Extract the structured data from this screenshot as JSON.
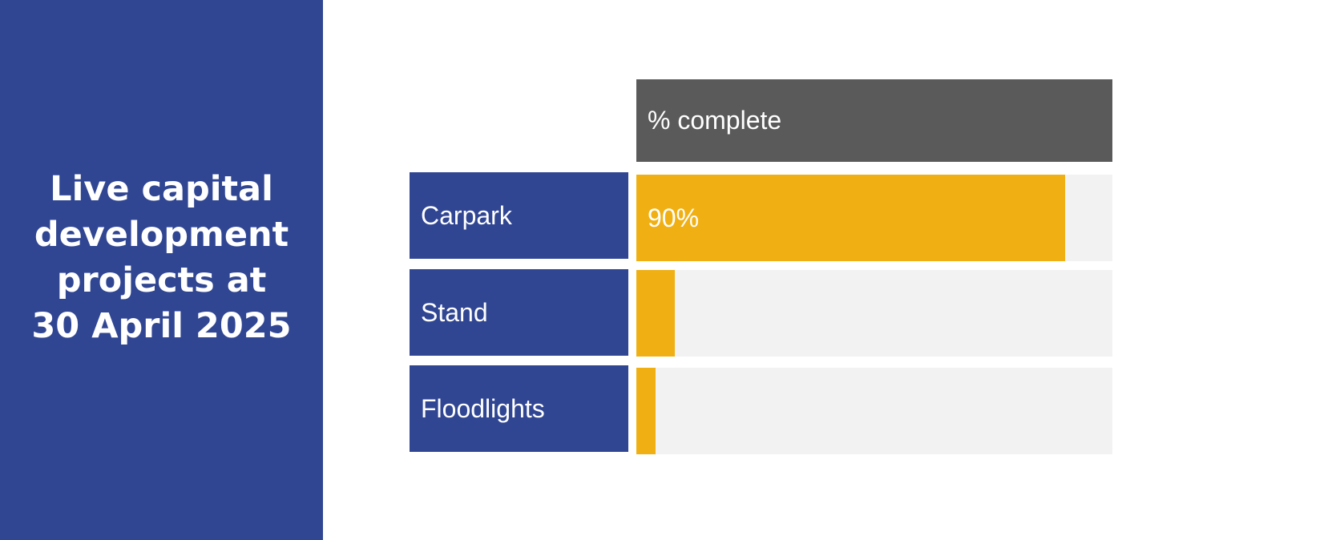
{
  "panel": {
    "title_lines": [
      "Live capital",
      "development",
      "projects at",
      "30 April 2025"
    ]
  },
  "chart_data": {
    "type": "bar",
    "orientation": "horizontal",
    "column_header": "% complete",
    "categories": [
      "Carpark",
      "Stand",
      "Floodlights"
    ],
    "values": [
      90,
      8,
      4
    ],
    "value_labels": [
      "90%",
      "",
      ""
    ],
    "xlim": [
      0,
      100
    ],
    "grid": false
  },
  "colors": {
    "panel": "#304693",
    "header": "#5a5a5a",
    "bar": "#f0b013",
    "track": "#f2f2f2"
  }
}
